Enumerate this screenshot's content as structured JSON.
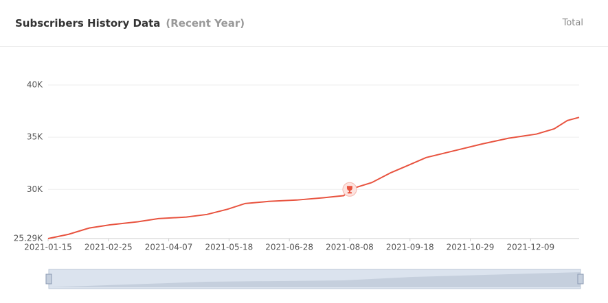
{
  "header": {
    "title": "Subscribers History Data",
    "subtitle": "(Recent Year)",
    "action": "Total"
  },
  "chart_data": {
    "type": "line",
    "x": [
      "2021-01-15",
      "2021-01-29",
      "2021-02-12",
      "2021-02-26",
      "2021-03-17",
      "2021-03-31",
      "2021-04-19",
      "2021-05-03",
      "2021-05-17",
      "2021-05-29",
      "2021-06-14",
      "2021-07-03",
      "2021-07-21",
      "2021-08-04",
      "2021-08-08",
      "2021-08-23",
      "2021-09-05",
      "2021-09-15",
      "2021-09-29",
      "2021-10-18",
      "2021-11-06",
      "2021-11-24",
      "2021-12-13",
      "2021-12-25",
      "2022-01-03",
      "2022-01-11"
    ],
    "values": [
      25290,
      25700,
      26300,
      26600,
      26900,
      27200,
      27350,
      27600,
      28100,
      28650,
      28850,
      28980,
      29200,
      29400,
      30000,
      30650,
      31600,
      32200,
      33050,
      33700,
      34350,
      34900,
      35300,
      35800,
      36600,
      36900
    ],
    "color": "#e8533f",
    "xlim": [
      "2021-01-15",
      "2022-01-11"
    ],
    "xticks": [
      "2021-01-15",
      "2021-02-25",
      "2021-04-07",
      "2021-05-18",
      "2021-06-28",
      "2021-08-08",
      "2021-09-18",
      "2021-10-29",
      "2021-12-09"
    ],
    "ylim": [
      25290,
      40000
    ],
    "yticks": [
      {
        "value": 25290,
        "label": "25.29K"
      },
      {
        "value": 30000,
        "label": "30K"
      },
      {
        "value": 35000,
        "label": "35K"
      },
      {
        "value": 40000,
        "label": "40K"
      }
    ],
    "grid": true
  }
}
